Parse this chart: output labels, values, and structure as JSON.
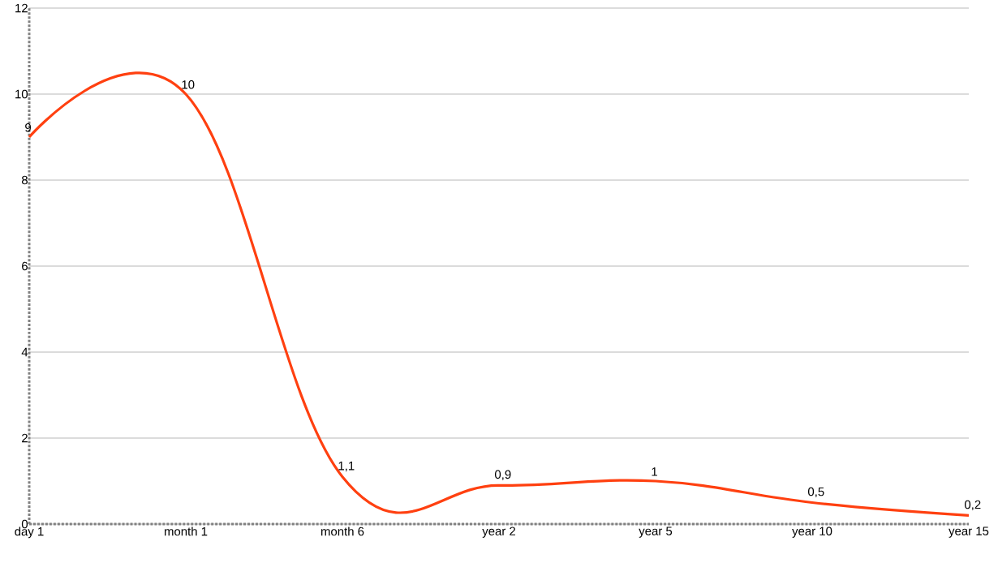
{
  "chart_data": {
    "type": "line",
    "categories": [
      "day 1",
      "month 1",
      "month 6",
      "year 2",
      "year 5",
      "year 10",
      "year 15"
    ],
    "series": [
      {
        "color": "#ff4010",
        "values": [
          9,
          10,
          1.1,
          0.9,
          1,
          0.5,
          0.2
        ],
        "value_labels": [
          "9",
          "10",
          "1,1",
          "0,9",
          "1",
          "0,5",
          "0,2"
        ]
      }
    ],
    "ylim": [
      0,
      12
    ],
    "yticks": [
      0,
      2,
      4,
      6,
      8,
      10,
      12
    ],
    "grid": "y",
    "marker": "none",
    "line_style": "solid"
  }
}
